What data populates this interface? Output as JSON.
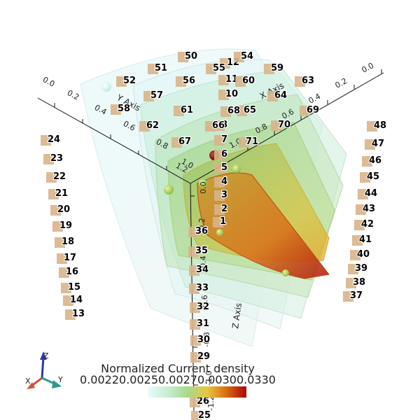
{
  "legend": {
    "title": "Normalized Current density",
    "range_text": "0.00220.00250.00270.00300.0330",
    "colors": [
      "#e6fbfb",
      "#c8ecd2",
      "#a8d98c",
      "#e8c640",
      "#d86a10",
      "#a80808"
    ]
  },
  "axes": {
    "x_title": "X Axis",
    "y_title": "Y Axis",
    "z_title": "Z Axis",
    "x_ticks": [
      "0.0",
      "0.2",
      "0.4",
      "0.6",
      "0.8",
      "1.0"
    ],
    "y_ticks": [
      "0.0",
      "0.2",
      "0.4",
      "0.6",
      "0.8",
      "1.0",
      "1.2"
    ],
    "z_ticks": [
      "0.0",
      "-0.2",
      "-0.4",
      "-0.6",
      "-0.8",
      "-1.0",
      "-1.2"
    ]
  },
  "orientation": {
    "x": "X",
    "y": "Y",
    "z": "Z"
  },
  "markers": [
    "1",
    "2",
    "3",
    "4",
    "5",
    "6",
    "7",
    "8",
    "10",
    "11",
    "12",
    "13",
    "14",
    "15",
    "16",
    "17",
    "18",
    "19",
    "20",
    "21",
    "22",
    "23",
    "24",
    "25",
    "26",
    "29",
    "30",
    "31",
    "32",
    "33",
    "34",
    "35",
    "36",
    "37",
    "38",
    "39",
    "40",
    "41",
    "42",
    "43",
    "44",
    "45",
    "46",
    "47",
    "48",
    "50",
    "51",
    "52",
    "54",
    "55",
    "56",
    "57",
    "58",
    "59",
    "60",
    "61",
    "62",
    "63",
    "64",
    "65",
    "66",
    "67",
    "68",
    "69",
    "70",
    "71"
  ]
}
